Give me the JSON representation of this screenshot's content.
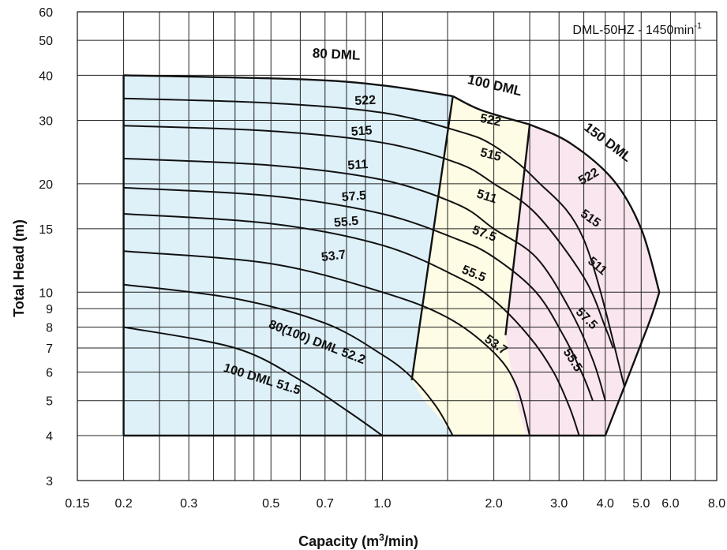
{
  "chart_data": {
    "type": "line",
    "title": "",
    "annotation_main": "DML-50HZ - 1450min",
    "annotation_sup": "-1",
    "xlabel_main": "Capacity  (m",
    "xlabel_sup": "3",
    "xlabel_tail": "/min)",
    "ylabel": "Total Head  (m)",
    "x_scale": "log",
    "y_scale": "log",
    "xlim": [
      0.15,
      8.0
    ],
    "ylim": [
      3,
      60
    ],
    "grid": true,
    "x_ticks": [
      {
        "value": 0.15,
        "label": "0.15"
      },
      {
        "value": 0.2,
        "label": "0.2"
      },
      {
        "value": 0.3,
        "label": "0.3"
      },
      {
        "value": 0.5,
        "label": "0.5"
      },
      {
        "value": 0.7,
        "label": "0.7"
      },
      {
        "value": 1.0,
        "label": "1.0"
      },
      {
        "value": 2.0,
        "label": "2.0"
      },
      {
        "value": 3.0,
        "label": "3.0"
      },
      {
        "value": 4.0,
        "label": "4.0"
      },
      {
        "value": 5.0,
        "label": "5.0"
      },
      {
        "value": 6.0,
        "label": "6.0"
      },
      {
        "value": 8.0,
        "label": "8.0"
      }
    ],
    "x_grid": [
      0.15,
      0.2,
      0.25,
      0.3,
      0.35,
      0.4,
      0.45,
      0.5,
      0.6,
      0.7,
      0.8,
      0.9,
      1.0,
      1.5,
      2.0,
      2.5,
      3.0,
      3.5,
      4.0,
      4.5,
      5.0,
      6.0,
      7.0,
      8.0
    ],
    "y_ticks": [
      {
        "value": 3,
        "label": "3"
      },
      {
        "value": 4,
        "label": "4"
      },
      {
        "value": 5,
        "label": "5"
      },
      {
        "value": 6,
        "label": "6"
      },
      {
        "value": 7,
        "label": "7"
      },
      {
        "value": 8,
        "label": "8"
      },
      {
        "value": 9,
        "label": "9"
      },
      {
        "value": 10,
        "label": "10"
      },
      {
        "value": 15,
        "label": "15"
      },
      {
        "value": 20,
        "label": "20"
      },
      {
        "value": 30,
        "label": "30"
      },
      {
        "value": 40,
        "label": "40"
      },
      {
        "value": 50,
        "label": "50"
      },
      {
        "value": 60,
        "label": "60"
      }
    ],
    "regions": [
      {
        "name": "80 DML",
        "color": "#def0f8",
        "boundary": [
          [
            0.2,
            40
          ],
          [
            0.6,
            39
          ],
          [
            1.0,
            37.5
          ],
          [
            1.55,
            35
          ],
          [
            1.2,
            5.7
          ],
          [
            1.3,
            5.0
          ],
          [
            1.45,
            4.4
          ],
          [
            1.55,
            4.0
          ],
          [
            0.2,
            4.0
          ]
        ]
      },
      {
        "name": "100 DML",
        "color": "#fefce4",
        "boundary": [
          [
            1.55,
            35
          ],
          [
            1.85,
            32
          ],
          [
            2.5,
            29.2
          ],
          [
            2.15,
            7.6
          ],
          [
            2.3,
            5.0
          ],
          [
            2.45,
            4.0
          ],
          [
            1.55,
            4.0
          ],
          [
            1.45,
            4.4
          ],
          [
            1.3,
            5.0
          ],
          [
            1.2,
            5.7
          ]
        ]
      },
      {
        "name": "150 DML",
        "color": "#fae6ee",
        "boundary": [
          [
            2.5,
            29.2
          ],
          [
            3.2,
            26
          ],
          [
            4.2,
            20.5
          ],
          [
            5.0,
            15
          ],
          [
            5.6,
            10
          ],
          [
            5.2,
            8
          ],
          [
            4.0,
            4.0
          ],
          [
            2.45,
            4.0
          ],
          [
            2.3,
            5.0
          ],
          [
            2.15,
            7.6
          ]
        ]
      }
    ],
    "boundaries": [
      {
        "name": "80-top",
        "points": [
          [
            0.2,
            40
          ],
          [
            0.6,
            39
          ],
          [
            1.0,
            37.5
          ],
          [
            1.55,
            35
          ]
        ]
      },
      {
        "name": "80-100-divider",
        "points": [
          [
            1.55,
            35
          ],
          [
            1.2,
            5.7
          ]
        ]
      },
      {
        "name": "100-top",
        "points": [
          [
            1.55,
            35
          ],
          [
            1.85,
            32
          ],
          [
            2.5,
            29.2
          ]
        ]
      },
      {
        "name": "100-150-divider",
        "points": [
          [
            2.5,
            29.2
          ],
          [
            2.15,
            7.6
          ]
        ]
      },
      {
        "name": "150-top",
        "points": [
          [
            2.5,
            29.2
          ],
          [
            3.2,
            26
          ],
          [
            4.2,
            20.5
          ],
          [
            5.0,
            15
          ],
          [
            5.6,
            10
          ]
        ]
      },
      {
        "name": "150-right-lower",
        "points": [
          [
            5.6,
            10
          ],
          [
            5.2,
            8
          ],
          [
            4.0,
            4.0
          ]
        ]
      },
      {
        "name": "left-edge",
        "points": [
          [
            0.2,
            40
          ],
          [
            0.2,
            4.0
          ]
        ]
      },
      {
        "name": "bottom-edge",
        "points": [
          [
            0.2,
            4.0
          ],
          [
            4.0,
            4.0
          ]
        ]
      }
    ],
    "series": [
      {
        "name": "80 DML 522",
        "values": [
          [
            0.2,
            34.5
          ],
          [
            0.5,
            33.5
          ],
          [
            1.0,
            31.5
          ],
          [
            1.6,
            28.0
          ],
          [
            2.0,
            25.5
          ],
          [
            2.6,
            20.5
          ],
          [
            3.5,
            14.0
          ],
          [
            4.5,
            5.5
          ]
        ]
      },
      {
        "name": "80 DML 515",
        "values": [
          [
            0.2,
            29.0
          ],
          [
            0.5,
            28.0
          ],
          [
            1.0,
            26.0
          ],
          [
            1.6,
            22.8
          ],
          [
            2.0,
            20.0
          ],
          [
            2.6,
            16.5
          ],
          [
            3.5,
            11.0
          ],
          [
            4.0,
            8.0
          ],
          [
            4.2,
            7.0
          ]
        ]
      },
      {
        "name": "80 DML 511",
        "values": [
          [
            0.2,
            23.5
          ],
          [
            0.5,
            22.5
          ],
          [
            1.0,
            20.5
          ],
          [
            1.6,
            17.5
          ],
          [
            2.0,
            15.0
          ],
          [
            2.6,
            12.5
          ],
          [
            3.2,
            9.0
          ],
          [
            3.7,
            6.5
          ],
          [
            4.0,
            5.0
          ]
        ]
      },
      {
        "name": "80 DML 57.5",
        "values": [
          [
            0.2,
            19.5
          ],
          [
            0.5,
            18.5
          ],
          [
            1.0,
            16.5
          ],
          [
            1.6,
            14.0
          ],
          [
            2.0,
            12.5
          ],
          [
            2.6,
            10.0
          ],
          [
            3.1,
            7.5
          ],
          [
            3.5,
            5.8
          ],
          [
            3.7,
            5.0
          ]
        ]
      },
      {
        "name": "80 DML 55.5",
        "values": [
          [
            0.2,
            16.5
          ],
          [
            0.5,
            15.5
          ],
          [
            1.0,
            13.5
          ],
          [
            1.6,
            11.0
          ],
          [
            2.0,
            9.5
          ],
          [
            2.5,
            7.5
          ],
          [
            2.9,
            6.0
          ],
          [
            3.2,
            4.8
          ],
          [
            3.4,
            4.0
          ]
        ]
      },
      {
        "name": "80 DML 53.7",
        "values": [
          [
            0.2,
            13.0
          ],
          [
            0.5,
            12.0
          ],
          [
            1.0,
            10.0
          ],
          [
            1.5,
            8.5
          ],
          [
            2.0,
            6.8
          ],
          [
            2.3,
            5.5
          ],
          [
            2.5,
            4.0
          ]
        ]
      },
      {
        "name": "80(100) DML 52.2",
        "values": [
          [
            0.2,
            10.5
          ],
          [
            0.4,
            9.6
          ],
          [
            0.7,
            8.2
          ],
          [
            1.0,
            6.7
          ],
          [
            1.2,
            5.8
          ],
          [
            1.4,
            4.8
          ],
          [
            1.55,
            4.0
          ]
        ]
      },
      {
        "name": "100 DML 51.5",
        "values": [
          [
            0.2,
            8.0
          ],
          [
            0.4,
            7.0
          ],
          [
            0.6,
            5.7
          ],
          [
            0.8,
            4.7
          ],
          [
            1.0,
            4.0
          ]
        ]
      }
    ],
    "curve_labels": [
      {
        "text": "522",
        "x": 0.9,
        "y": 33.2,
        "rotate": -3
      },
      {
        "text": "515",
        "x": 0.88,
        "y": 27.3,
        "rotate": -4
      },
      {
        "text": "511",
        "x": 0.86,
        "y": 22.0,
        "rotate": -4
      },
      {
        "text": "57.5",
        "x": 0.84,
        "y": 18.0,
        "rotate": -5
      },
      {
        "text": "55.5",
        "x": 0.8,
        "y": 15.3,
        "rotate": -5
      },
      {
        "text": "53.7",
        "x": 0.74,
        "y": 12.3,
        "rotate": -7
      },
      {
        "text": "522",
        "x": 1.95,
        "y": 29.3,
        "rotate": 12
      },
      {
        "text": "515",
        "x": 1.95,
        "y": 23.5,
        "rotate": 14
      },
      {
        "text": "511",
        "x": 1.9,
        "y": 18.0,
        "rotate": 18
      },
      {
        "text": "57.5",
        "x": 1.87,
        "y": 14.2,
        "rotate": 20
      },
      {
        "text": "55.5",
        "x": 1.75,
        "y": 11.0,
        "rotate": 22
      },
      {
        "text": "53.7",
        "x": 2.0,
        "y": 7.0,
        "rotate": 35
      },
      {
        "text": "522",
        "x": 3.65,
        "y": 20.5,
        "rotate": -30
      },
      {
        "text": "515",
        "x": 3.6,
        "y": 15.7,
        "rotate": 35
      },
      {
        "text": "511",
        "x": 3.75,
        "y": 11.6,
        "rotate": 40
      },
      {
        "text": "57.5",
        "x": 3.5,
        "y": 8.3,
        "rotate": 45
      },
      {
        "text": "55.5",
        "x": 3.2,
        "y": 6.4,
        "rotate": 58
      },
      {
        "text": "80(100) DML 52.2",
        "x": 0.66,
        "y": 7.1,
        "rotate": 21
      },
      {
        "text": "100 DML 51.5",
        "x": 0.47,
        "y": 5.6,
        "rotate": 17
      }
    ],
    "series_labels": [
      {
        "text": "80 DML",
        "x": 0.75,
        "y": 44.5,
        "rotate": 3
      },
      {
        "text": "100 DML",
        "x": 2.0,
        "y": 36.5,
        "rotate": 13
      },
      {
        "text": "150 DML",
        "x": 4.0,
        "y": 25.5,
        "rotate": 37
      }
    ]
  }
}
